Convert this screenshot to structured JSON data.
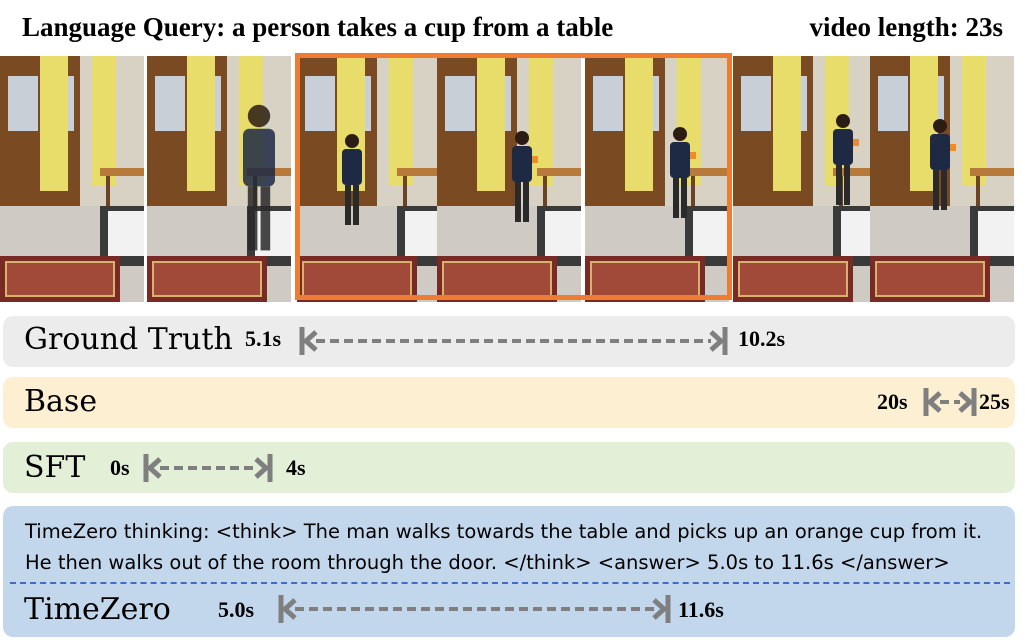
{
  "header": {
    "query": "Language Query: a person takes a cup from a table",
    "video_length": "video length: 23s"
  },
  "frames": [
    {
      "scene": "empty-room"
    },
    {
      "scene": "person-entering"
    },
    {
      "scene": "person-at-table"
    },
    {
      "scene": "person-picking-cup"
    },
    {
      "scene": "person-holding-cup"
    },
    {
      "scene": "person-walking-out"
    },
    {
      "scene": "person-at-door"
    }
  ],
  "highlight": {
    "color": "#ec7d32"
  },
  "rows": {
    "ground_truth": {
      "label": "Ground Truth",
      "start": "5.1s",
      "end": "10.2s",
      "start_value": 5.1,
      "end_value": 10.2,
      "bg": "#ececec"
    },
    "base": {
      "label": "Base",
      "start": "20s",
      "end": "25s",
      "start_value": 20,
      "end_value": 25,
      "bg": "#fdf0d2"
    },
    "sft": {
      "label": "SFT",
      "start": "0s",
      "end": "4s",
      "start_value": 0,
      "end_value": 4,
      "bg": "#e4efd8"
    },
    "timezero": {
      "thinking": "TimeZero thinking: <think> The man walks towards the table and picks up an orange cup from it. He then walks out of the room through the door. </think> <answer> 5.0s to 11.6s </answer>",
      "label": "TimeZero",
      "start": "5.0s",
      "end": "11.6s",
      "start_value": 5.0,
      "end_value": 11.6,
      "bg": "#c3d7ec"
    }
  },
  "arrow_color": "#7f7f7f"
}
